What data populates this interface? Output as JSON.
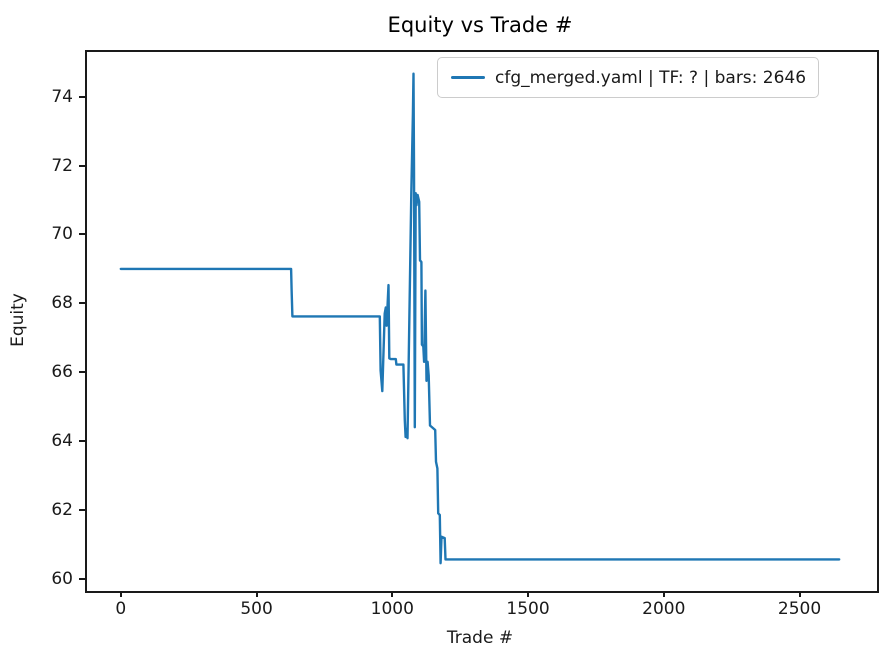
{
  "figure": {
    "background": "#ffffff",
    "spine_color": "#1a1a1a"
  },
  "chart_data": {
    "type": "line",
    "title": "Equity vs Trade #",
    "xlabel": "Trade #",
    "ylabel": "Equity",
    "xlim": [
      -132,
      2778
    ],
    "ylim": [
      59.7,
      75.36
    ],
    "x_ticks": [
      0,
      500,
      1000,
      1500,
      2000,
      2500
    ],
    "y_ticks": [
      60,
      62,
      64,
      66,
      68,
      70,
      72,
      74
    ],
    "grid": false,
    "legend": {
      "position": "upper right",
      "entries": [
        {
          "label": "cfg_merged.yaml | TF: ? | bars: 2646",
          "color": "#1f77b4"
        }
      ]
    },
    "series": [
      {
        "name": "cfg_merged.yaml | TF: ? | bars: 2646",
        "color": "#1f77b4",
        "points": [
          [
            0,
            69.0
          ],
          [
            627,
            69.0
          ],
          [
            629,
            68.4
          ],
          [
            632,
            67.62
          ],
          [
            954,
            67.62
          ],
          [
            957,
            66.05
          ],
          [
            963,
            65.45
          ],
          [
            972,
            67.7
          ],
          [
            976,
            67.88
          ],
          [
            979,
            67.35
          ],
          [
            986,
            68.53
          ],
          [
            989,
            66.4
          ],
          [
            995,
            66.38
          ],
          [
            1013,
            66.38
          ],
          [
            1015,
            66.22
          ],
          [
            1041,
            66.22
          ],
          [
            1046,
            64.6
          ],
          [
            1049,
            64.12
          ],
          [
            1053,
            64.35
          ],
          [
            1056,
            64.08
          ],
          [
            1070,
            71.2
          ],
          [
            1076,
            73.5
          ],
          [
            1078,
            74.67
          ],
          [
            1080,
            72.0
          ],
          [
            1083,
            64.4
          ],
          [
            1086,
            71.2
          ],
          [
            1089,
            70.85
          ],
          [
            1093,
            71.15
          ],
          [
            1099,
            70.95
          ],
          [
            1102,
            69.25
          ],
          [
            1107,
            69.2
          ],
          [
            1109,
            66.8
          ],
          [
            1114,
            66.75
          ],
          [
            1117,
            66.3
          ],
          [
            1122,
            68.37
          ],
          [
            1126,
            65.75
          ],
          [
            1130,
            66.3
          ],
          [
            1134,
            65.9
          ],
          [
            1139,
            64.45
          ],
          [
            1158,
            64.32
          ],
          [
            1161,
            63.4
          ],
          [
            1166,
            63.2
          ],
          [
            1169,
            61.9
          ],
          [
            1175,
            61.85
          ],
          [
            1178,
            60.45
          ],
          [
            1181,
            61.22
          ],
          [
            1193,
            61.18
          ],
          [
            1196,
            60.56
          ],
          [
            2646,
            60.56
          ]
        ]
      }
    ]
  }
}
